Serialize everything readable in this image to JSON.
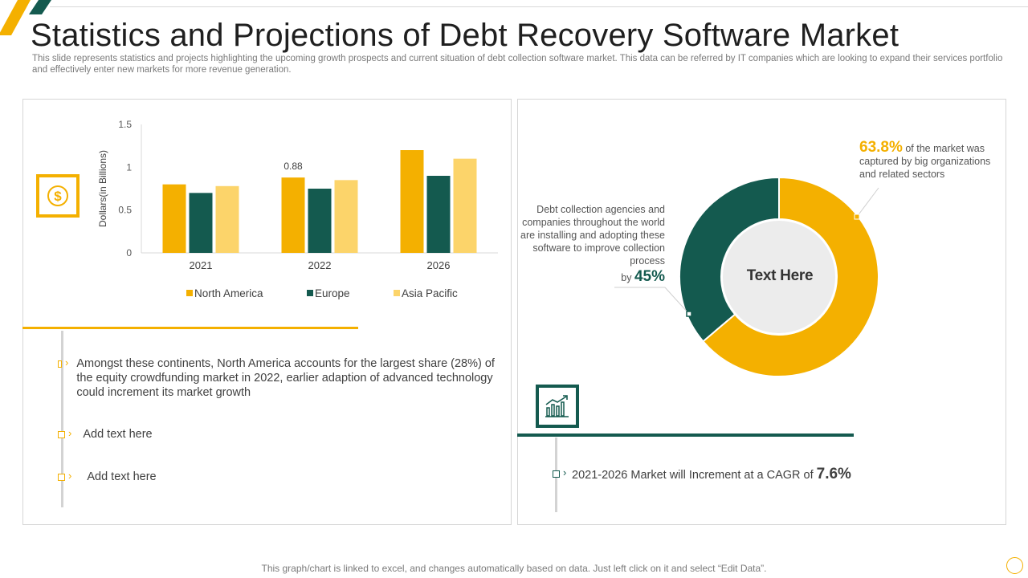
{
  "page": {
    "title": "Statistics and Projections of Debt Recovery Software Market",
    "subtitle": "This slide represents statistics and projects highlighting the upcoming growth prospects and current situation of debt collection software market. This data can be referred by IT companies which are looking to expand their services portfolio and effectively  enter new markets for more revenue generation.",
    "footer": "This graph/chart is linked to excel,  and changes automatically based on data. Just left click on it and select “Edit Data”."
  },
  "colors": {
    "yellow": "#f4b000",
    "green": "#145a4f",
    "light_yellow": "#fcd46a",
    "donut_center": "#ececec"
  },
  "icons": {
    "dollar": "dollar-icon",
    "growth": "bar-growth-icon"
  },
  "chart_data": [
    {
      "type": "bar",
      "categories": [
        "2021",
        "2022",
        "2026"
      ],
      "series": [
        {
          "name": "North America",
          "values": [
            0.8,
            0.88,
            1.2
          ],
          "color": "#f4b000"
        },
        {
          "name": "Europe",
          "values": [
            0.7,
            0.75,
            0.9
          ],
          "color": "#145a4f"
        },
        {
          "name": "Asia Pacific",
          "values": [
            0.78,
            0.85,
            1.1
          ],
          "color": "#fcd46a"
        }
      ],
      "data_labels": [
        {
          "series": "North America",
          "category": "2022",
          "text": "0.88"
        }
      ],
      "ylabel": "Dollars(in Billions)",
      "xlabel": "",
      "ylim": [
        0,
        1.5
      ],
      "yticks": [
        0,
        0.5,
        1,
        1.5
      ],
      "ytick_labels": [
        "0",
        "0.5",
        "1",
        "1.5"
      ],
      "grid": false,
      "legend": "bottom"
    },
    {
      "type": "pie",
      "donut": true,
      "center_label": "Text Here",
      "slices": [
        {
          "value": 63.8,
          "color": "#f4b000"
        },
        {
          "value": 36.2,
          "color": "#145a4f"
        }
      ]
    }
  ],
  "left_points": [
    {
      "text": "Amongst these continents, North America accounts for the largest share (28%) of the equity crowdfunding market in 2022, earlier adaption of advanced technology could increment its market growth"
    },
    {
      "text": "Add text here"
    },
    {
      "text": "Add text here"
    }
  ],
  "callouts": {
    "big_org": {
      "value": "63.8%",
      "text": "of the market was captured by big organizations and related sectors"
    },
    "agencies": {
      "text": "Debt collection agencies and companies throughout the world are installing and adopting these software to improve collection process",
      "by": "by",
      "value": "45%"
    }
  },
  "cagr": {
    "text": "2021-2026 Market will Increment at a CAGR of",
    "value": "7.6%"
  }
}
